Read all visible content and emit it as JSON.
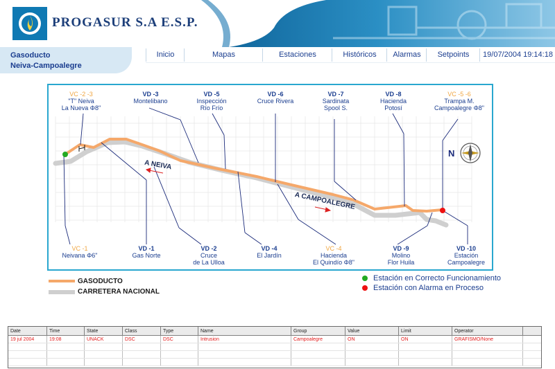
{
  "header": {
    "brand": "PROGASUR S.A  E.S.P."
  },
  "subtitle": {
    "line1": "Gasoducto",
    "line2": "Neiva-Campoalegre"
  },
  "nav": {
    "items": [
      "Inicio",
      "Mapas",
      "Estaciones",
      "Históricos",
      "Alarmas",
      "Setpoints"
    ],
    "datetime": "19/07/2004  19:14:18"
  },
  "diagram": {
    "top_labels": [
      {
        "code": "VC -2 -3",
        "l1": "\"T\" Neiva",
        "l2": "La Nueva Φ8\"",
        "kind": "vc"
      },
      {
        "code": "VD -3",
        "l1": "Montelibano",
        "l2": "",
        "kind": "vd"
      },
      {
        "code": "VD -5",
        "l1": "Inspección",
        "l2": "Río Frío",
        "kind": "vd"
      },
      {
        "code": "VD -6",
        "l1": "Cruce Rivera",
        "l2": "",
        "kind": "vd"
      },
      {
        "code": "VD -7",
        "l1": "Sardinata",
        "l2": "Spool S.",
        "kind": "vd"
      },
      {
        "code": "VD -8",
        "l1": "Hacienda",
        "l2": "Potosí",
        "kind": "vd"
      },
      {
        "code": "VC -5 -6",
        "l1": "Trampa M.",
        "l2": "Campoalegre Φ8\"",
        "kind": "vc"
      }
    ],
    "bottom_labels": [
      {
        "code": "VC -1",
        "l1": "Neivana Φ6\"",
        "l2": "",
        "kind": "vc"
      },
      {
        "code": "VD -1",
        "l1": "Gas Norte",
        "l2": "",
        "kind": "vd"
      },
      {
        "code": "VD -2",
        "l1": "Cruce",
        "l2": "de La Ulloa",
        "kind": "vd"
      },
      {
        "code": "VD -4",
        "l1": "El Jardín",
        "l2": "",
        "kind": "vd"
      },
      {
        "code": "VC -4",
        "l1": "Hacienda",
        "l2": "El Quindío Φ8\"",
        "kind": "vc"
      },
      {
        "code": "VD -9",
        "l1": "Molino",
        "l2": "Flor Huila",
        "kind": "vd"
      },
      {
        "code": "VD -10",
        "l1": "Estación",
        "l2": "Campoalegre",
        "kind": "vd"
      }
    ],
    "road_labels": {
      "neiva": "A NEIVA",
      "campoalegre": "A CAMPOALEGRE"
    },
    "compass_letter": "N",
    "colors": {
      "pipeline": "#f5a86a",
      "road": "#cfcfcf",
      "ok": "#22aa22",
      "alarm": "#ee1111",
      "frame": "#29a7cf"
    }
  },
  "legend": {
    "pipeline": "GASODUCTO",
    "road": "CARRETERA NACIONAL",
    "ok": "Estación en Correcto Funcionamiento",
    "alarm": "Estación con Alarma en Proceso"
  },
  "alarms": {
    "columns": [
      "Date",
      "Time",
      "State",
      "Class",
      "Type",
      "Name",
      "Group",
      "Value",
      "Limit",
      "Operator"
    ],
    "rows": [
      [
        "19 jul 2004",
        "19:08",
        "UNACK",
        "DSC",
        "DSC",
        "Intrusion",
        "Campoalegre",
        "ON",
        "ON",
        "GRAFISMO/None"
      ]
    ]
  }
}
